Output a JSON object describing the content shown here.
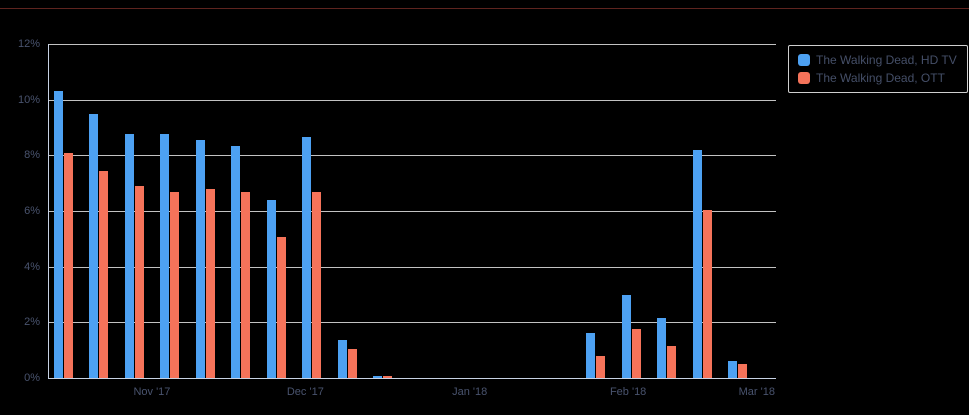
{
  "page": {
    "background": "#000000",
    "top_border_color": "#6e2a24"
  },
  "chart_data": {
    "type": "bar",
    "title": "",
    "xlabel": "",
    "ylabel": "",
    "ylim": [
      0,
      12
    ],
    "y_tick_step": 2,
    "y_unit": "%",
    "grid": true,
    "legend_position": "top-right",
    "y_tick_labels": [
      "0%",
      "2%",
      "4%",
      "6%",
      "8%",
      "10%",
      "12%"
    ],
    "x_tick_labels": [
      {
        "label": "Nov '17",
        "pos": 0.143
      },
      {
        "label": "Dec '17",
        "pos": 0.354
      },
      {
        "label": "Jan '18",
        "pos": 0.58
      },
      {
        "label": "Feb '18",
        "pos": 0.798
      },
      {
        "label": "Mar '18",
        "pos": 0.975
      }
    ],
    "series": [
      {
        "name": "The Walking Dead, HD TV",
        "color": "#4da1f2",
        "values": [
          10.3,
          9.5,
          8.75,
          8.75,
          8.55,
          8.35,
          6.4,
          8.65,
          1.35,
          0.08,
          0,
          0,
          0,
          0,
          0,
          1.6,
          3.0,
          2.15,
          8.2,
          0.6,
          0
        ]
      },
      {
        "name": "The Walking Dead, OTT",
        "color": "#f5735a",
        "values": [
          8.1,
          7.45,
          6.9,
          6.7,
          6.8,
          6.7,
          5.05,
          6.7,
          1.05,
          0.08,
          0,
          0,
          0,
          0,
          0,
          0.8,
          1.75,
          1.15,
          6.05,
          0.5,
          0
        ]
      }
    ]
  }
}
